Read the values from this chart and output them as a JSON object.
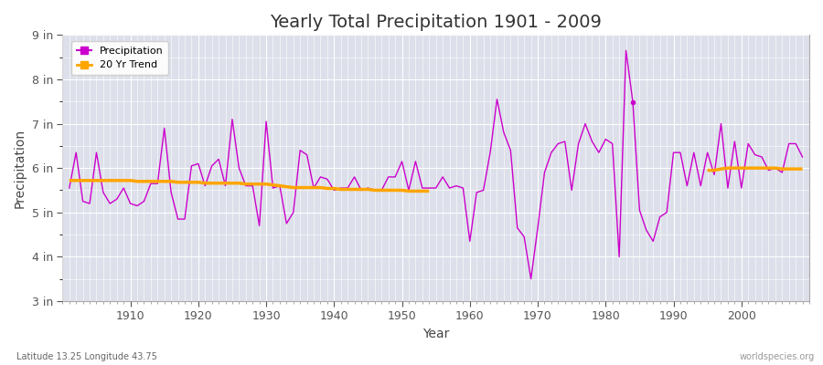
{
  "title": "Yearly Total Precipitation 1901 - 2009",
  "xlabel": "Year",
  "ylabel": "Precipitation",
  "subtitle": "Latitude 13.25 Longitude 43.75",
  "watermark": "worldspecies.org",
  "precip_color": "#cc00cc",
  "trend_color": "#ffa500",
  "bg_color": "#dde0ea",
  "fig_color": "#ffffff",
  "grid_color": "#ffffff",
  "ylim": [
    3.0,
    9.0
  ],
  "yticks": [
    3,
    4,
    5,
    6,
    7,
    8,
    9
  ],
  "ytick_labels": [
    "3 in",
    "4 in",
    "5 in",
    "6 in",
    "7 in",
    "8 in",
    "9 in"
  ],
  "years": [
    1901,
    1902,
    1903,
    1904,
    1905,
    1906,
    1907,
    1908,
    1909,
    1910,
    1911,
    1912,
    1913,
    1914,
    1915,
    1916,
    1917,
    1918,
    1919,
    1920,
    1921,
    1922,
    1923,
    1924,
    1925,
    1926,
    1927,
    1928,
    1929,
    1930,
    1931,
    1932,
    1933,
    1934,
    1935,
    1936,
    1937,
    1938,
    1939,
    1940,
    1941,
    1942,
    1943,
    1944,
    1945,
    1946,
    1947,
    1948,
    1949,
    1950,
    1951,
    1952,
    1953,
    1954,
    1955,
    1956,
    1957,
    1958,
    1959,
    1960,
    1961,
    1962,
    1963,
    1964,
    1965,
    1966,
    1967,
    1968,
    1969,
    1970,
    1971,
    1972,
    1973,
    1974,
    1975,
    1976,
    1977,
    1978,
    1979,
    1980,
    1981,
    1982,
    1983,
    1984,
    1985,
    1986,
    1987,
    1988,
    1989,
    1990,
    1991,
    1992,
    1993,
    1994,
    1995,
    1996,
    1997,
    1998,
    1999,
    2000,
    2001,
    2002,
    2003,
    2004,
    2005,
    2006,
    2007,
    2008,
    2009
  ],
  "precip": [
    5.55,
    6.35,
    5.25,
    5.2,
    6.35,
    5.45,
    5.2,
    5.3,
    5.55,
    5.2,
    5.15,
    5.25,
    5.65,
    5.65,
    6.9,
    5.45,
    4.85,
    4.85,
    6.05,
    6.1,
    5.6,
    6.05,
    6.2,
    5.6,
    7.1,
    6.0,
    5.6,
    5.6,
    4.7,
    7.05,
    5.55,
    5.6,
    4.75,
    5.0,
    6.4,
    6.3,
    5.55,
    5.8,
    5.75,
    5.5,
    5.55,
    5.55,
    5.8,
    5.5,
    5.55,
    5.5,
    5.5,
    5.8,
    5.8,
    6.15,
    5.5,
    6.15,
    5.55,
    5.55,
    5.55,
    5.8,
    5.55,
    5.6,
    5.55,
    4.35,
    5.45,
    5.5,
    6.35,
    7.55,
    6.8,
    6.4,
    4.65,
    4.45,
    3.5,
    4.65,
    5.9,
    6.35,
    6.55,
    6.6,
    5.5,
    6.55,
    7.0,
    6.6,
    6.35,
    6.65,
    6.55,
    4.0,
    8.65,
    7.5,
    5.05,
    4.6,
    4.35,
    4.9,
    5.0,
    6.35,
    6.35,
    5.6,
    6.35,
    5.6,
    6.35,
    5.85,
    7.0,
    5.55,
    6.6,
    5.55,
    6.55,
    6.3,
    6.25,
    5.95,
    6.0,
    5.9,
    6.55,
    6.55,
    6.25
  ],
  "trend_seg1_years": [
    1901,
    1902,
    1903,
    1904,
    1905,
    1906,
    1907,
    1908,
    1909,
    1910,
    1911,
    1912,
    1913,
    1914,
    1915,
    1916,
    1917,
    1918,
    1919,
    1920,
    1921,
    1922,
    1923,
    1924,
    1925,
    1926,
    1927,
    1928,
    1929,
    1930,
    1931,
    1932,
    1933,
    1934,
    1935,
    1936,
    1937,
    1938,
    1939,
    1940,
    1941,
    1942,
    1943,
    1944,
    1945,
    1946,
    1947,
    1948,
    1949,
    1950,
    1951,
    1952,
    1953,
    1954
  ],
  "trend_seg1": [
    5.72,
    5.72,
    5.72,
    5.72,
    5.72,
    5.72,
    5.72,
    5.72,
    5.72,
    5.72,
    5.7,
    5.7,
    5.7,
    5.7,
    5.7,
    5.7,
    5.68,
    5.68,
    5.68,
    5.68,
    5.66,
    5.66,
    5.66,
    5.66,
    5.66,
    5.66,
    5.64,
    5.64,
    5.64,
    5.64,
    5.62,
    5.6,
    5.58,
    5.56,
    5.56,
    5.56,
    5.56,
    5.56,
    5.54,
    5.54,
    5.52,
    5.52,
    5.52,
    5.52,
    5.52,
    5.5,
    5.5,
    5.5,
    5.5,
    5.5,
    5.48,
    5.48,
    5.48,
    5.48
  ],
  "trend_seg2_years": [
    1995,
    1996,
    1997,
    1998,
    1999,
    2000,
    2001,
    2002,
    2003,
    2004,
    2005,
    2006,
    2007,
    2008,
    2009
  ],
  "trend_seg2": [
    5.95,
    5.95,
    5.98,
    6.0,
    6.0,
    6.0,
    6.0,
    6.0,
    6.0,
    6.0,
    6.0,
    5.98,
    5.98,
    5.98,
    5.98
  ],
  "dot_year": 1984,
  "dot_value": 7.48
}
